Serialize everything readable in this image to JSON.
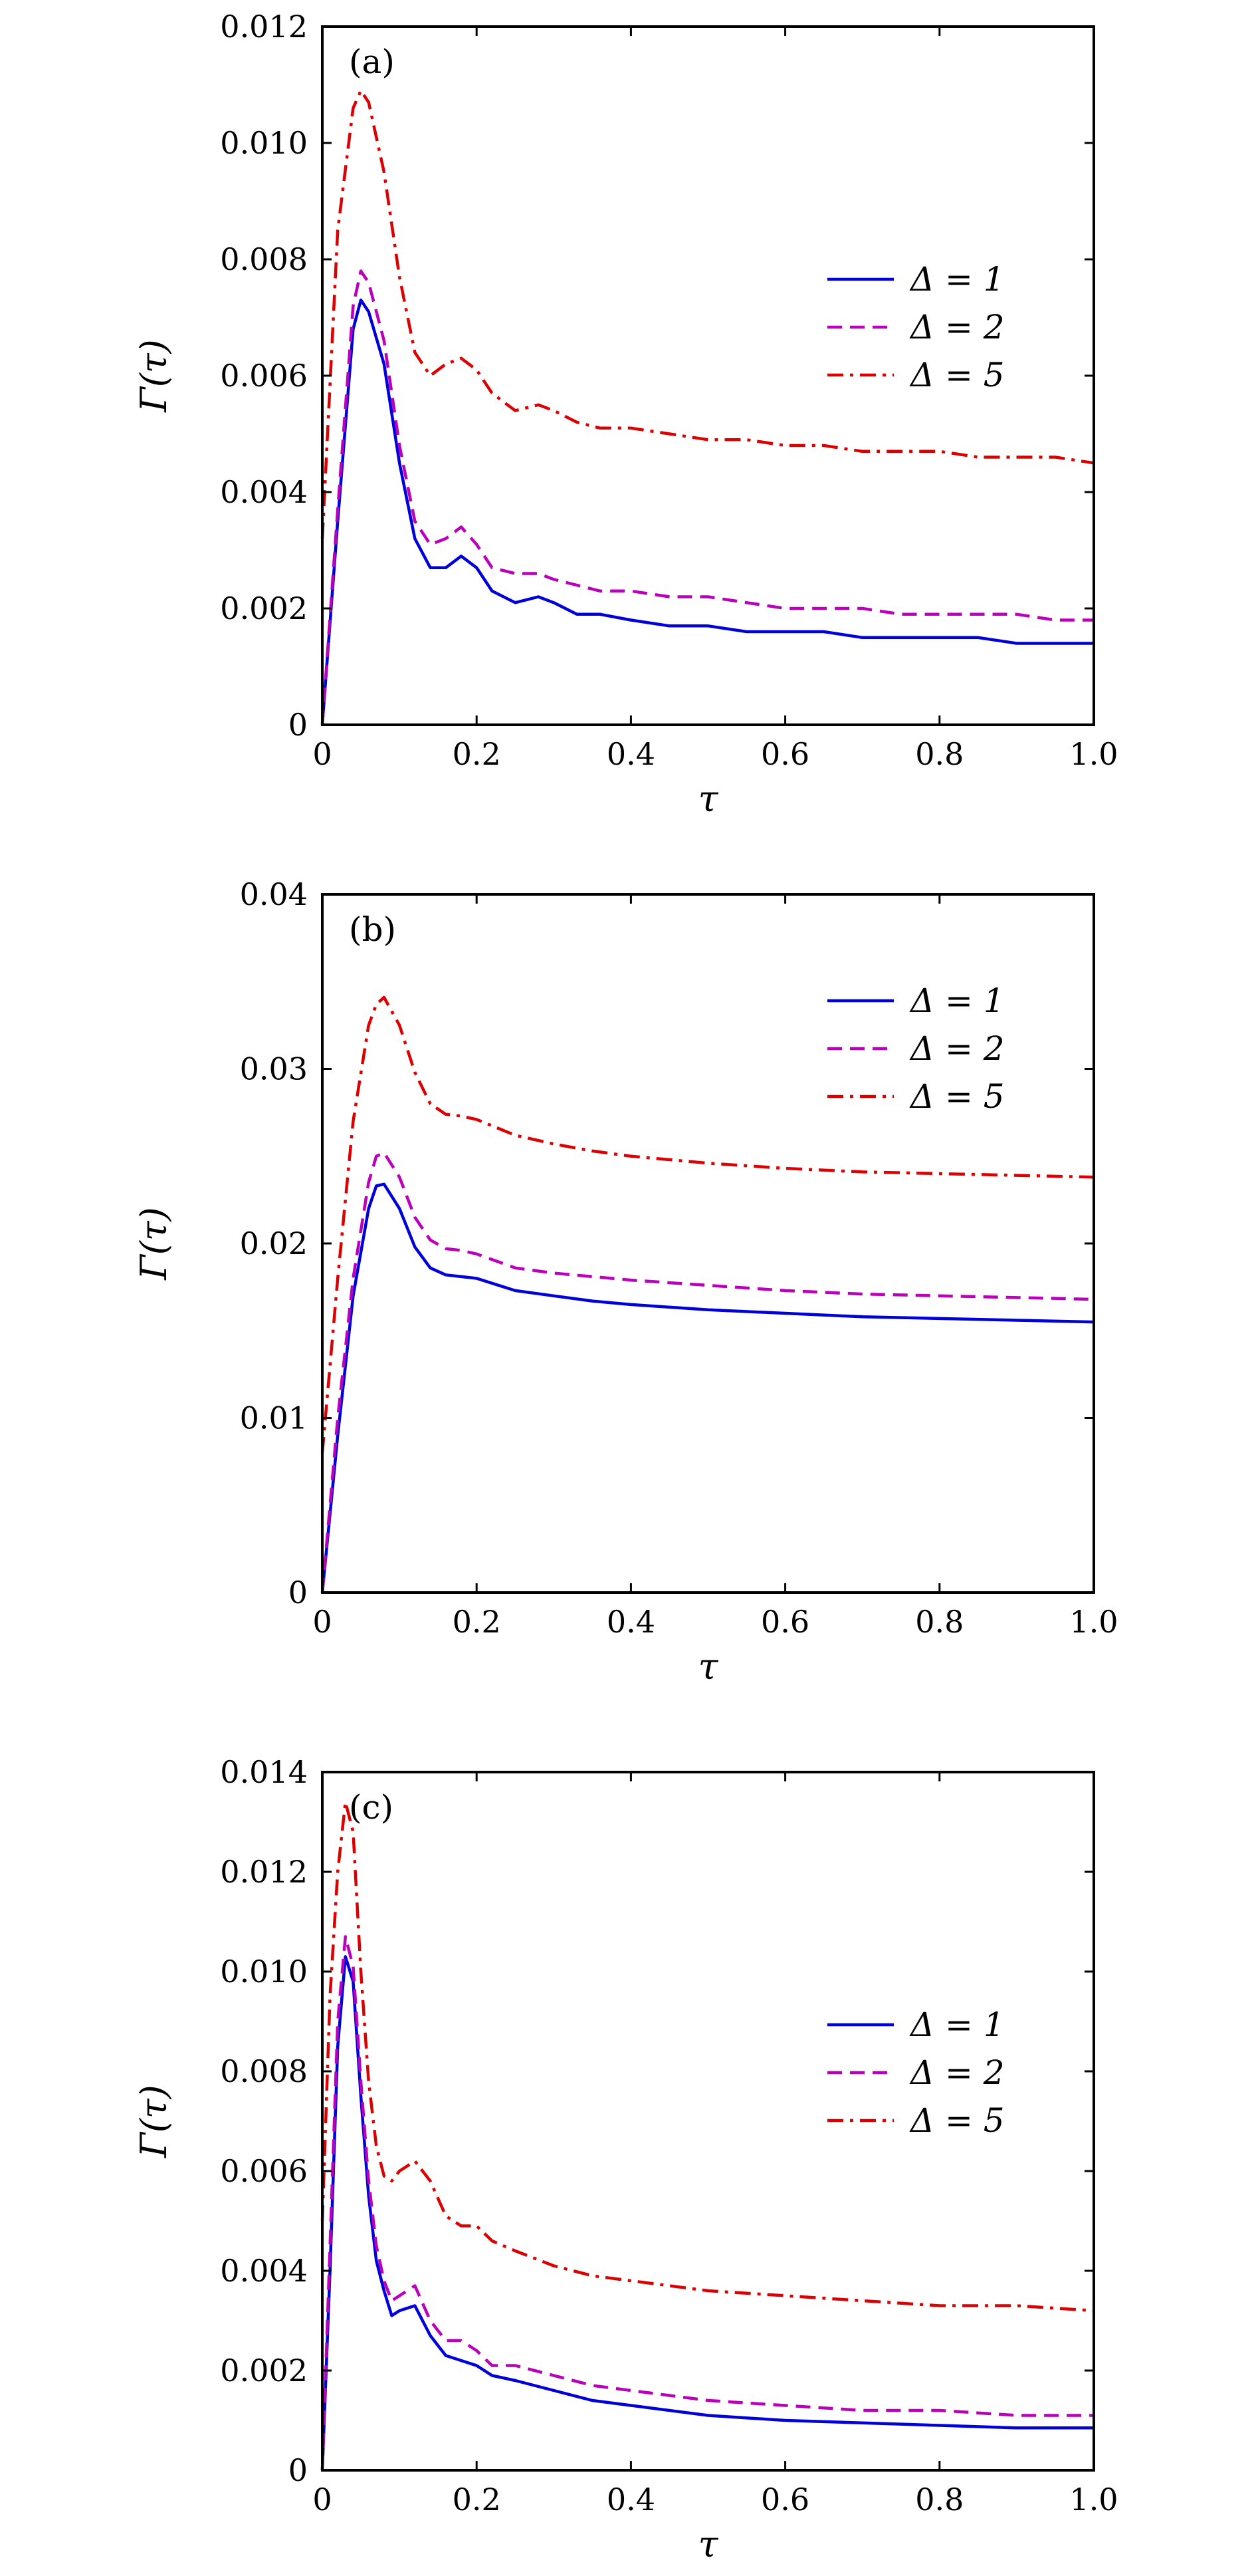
{
  "colors": {
    "solid": "#0000dd",
    "dashed": "#bb00bb",
    "dashdot": "#dd0000"
  },
  "chart_data": [
    {
      "type": "line",
      "panel_label": "(a)",
      "xlabel": "τ",
      "ylabel": "Γ(τ)",
      "xlim": [
        0,
        1.0
      ],
      "ylim": [
        0,
        0.012
      ],
      "xticks": [
        0,
        0.2,
        0.4,
        0.6,
        0.8,
        1.0
      ],
      "xtick_labels": [
        "0",
        "0.2",
        "0.4",
        "0.6",
        "0.8",
        "1.0"
      ],
      "yticks": [
        0,
        0.002,
        0.004,
        0.006,
        0.008,
        0.01,
        0.012
      ],
      "ytick_labels": [
        "0",
        "0.002",
        "0.004",
        "0.006",
        "0.008",
        "0.010",
        "0.012"
      ],
      "legend_position": "right",
      "series": [
        {
          "name": "Δ = 1",
          "style": "solid",
          "x": [
            0,
            0.02,
            0.04,
            0.05,
            0.06,
            0.08,
            0.1,
            0.12,
            0.14,
            0.16,
            0.18,
            0.2,
            0.22,
            0.25,
            0.28,
            0.3,
            0.33,
            0.36,
            0.4,
            0.45,
            0.5,
            0.55,
            0.6,
            0.65,
            0.7,
            0.75,
            0.8,
            0.85,
            0.9,
            0.95,
            1.0
          ],
          "y": [
            0,
            0.0035,
            0.0068,
            0.0073,
            0.0071,
            0.0062,
            0.0045,
            0.0032,
            0.0027,
            0.0027,
            0.0029,
            0.0027,
            0.0023,
            0.0021,
            0.0022,
            0.0021,
            0.0019,
            0.0019,
            0.0018,
            0.0017,
            0.0017,
            0.0016,
            0.0016,
            0.0016,
            0.0015,
            0.0015,
            0.0015,
            0.0015,
            0.0014,
            0.0014,
            0.0014
          ]
        },
        {
          "name": "Δ = 2",
          "style": "dashed",
          "x": [
            0,
            0.02,
            0.04,
            0.05,
            0.06,
            0.08,
            0.1,
            0.12,
            0.14,
            0.16,
            0.18,
            0.2,
            0.22,
            0.25,
            0.28,
            0.3,
            0.33,
            0.36,
            0.4,
            0.45,
            0.5,
            0.55,
            0.6,
            0.65,
            0.7,
            0.75,
            0.8,
            0.85,
            0.9,
            0.95,
            1.0
          ],
          "y": [
            0,
            0.0037,
            0.0072,
            0.0078,
            0.0076,
            0.0066,
            0.0048,
            0.0035,
            0.0031,
            0.0032,
            0.0034,
            0.0031,
            0.0027,
            0.0026,
            0.0026,
            0.0025,
            0.0024,
            0.0023,
            0.0023,
            0.0022,
            0.0022,
            0.0021,
            0.002,
            0.002,
            0.002,
            0.0019,
            0.0019,
            0.0019,
            0.0019,
            0.0018,
            0.0018
          ]
        },
        {
          "name": "Δ = 5",
          "style": "dashdot",
          "x": [
            0,
            0.02,
            0.04,
            0.05,
            0.06,
            0.08,
            0.1,
            0.12,
            0.14,
            0.16,
            0.18,
            0.2,
            0.22,
            0.25,
            0.28,
            0.3,
            0.33,
            0.36,
            0.4,
            0.45,
            0.5,
            0.55,
            0.6,
            0.65,
            0.7,
            0.75,
            0.8,
            0.85,
            0.9,
            0.95,
            1.0
          ],
          "y": [
            0.0032,
            0.0085,
            0.0106,
            0.0109,
            0.0107,
            0.0095,
            0.0077,
            0.0064,
            0.006,
            0.0062,
            0.0063,
            0.0061,
            0.0057,
            0.0054,
            0.0055,
            0.0054,
            0.0052,
            0.0051,
            0.0051,
            0.005,
            0.0049,
            0.0049,
            0.0048,
            0.0048,
            0.0047,
            0.0047,
            0.0047,
            0.0046,
            0.0046,
            0.0046,
            0.0045
          ]
        }
      ]
    },
    {
      "type": "line",
      "panel_label": "(b)",
      "xlabel": "τ",
      "ylabel": "Γ(τ)",
      "xlim": [
        0,
        1.0
      ],
      "ylim": [
        0,
        0.04
      ],
      "xticks": [
        0,
        0.2,
        0.4,
        0.6,
        0.8,
        1.0
      ],
      "xtick_labels": [
        "0",
        "0.2",
        "0.4",
        "0.6",
        "0.8",
        "1.0"
      ],
      "yticks": [
        0,
        0.01,
        0.02,
        0.03,
        0.04
      ],
      "ytick_labels": [
        "0",
        "0.01",
        "0.02",
        "0.03",
        "0.04"
      ],
      "legend_position": "top-right",
      "series": [
        {
          "name": "Δ = 1",
          "style": "solid",
          "x": [
            0,
            0.02,
            0.04,
            0.06,
            0.07,
            0.08,
            0.1,
            0.12,
            0.14,
            0.16,
            0.18,
            0.2,
            0.25,
            0.3,
            0.35,
            0.4,
            0.5,
            0.6,
            0.7,
            0.8,
            0.9,
            1.0
          ],
          "y": [
            0,
            0.009,
            0.017,
            0.022,
            0.0233,
            0.0234,
            0.022,
            0.0198,
            0.0186,
            0.0182,
            0.0181,
            0.018,
            0.0173,
            0.017,
            0.0167,
            0.0165,
            0.0162,
            0.016,
            0.0158,
            0.0157,
            0.0156,
            0.0155
          ]
        },
        {
          "name": "Δ = 2",
          "style": "dashed",
          "x": [
            0,
            0.02,
            0.04,
            0.06,
            0.07,
            0.08,
            0.1,
            0.12,
            0.14,
            0.16,
            0.18,
            0.2,
            0.25,
            0.3,
            0.35,
            0.4,
            0.5,
            0.6,
            0.7,
            0.8,
            0.9,
            1.0
          ],
          "y": [
            0,
            0.01,
            0.018,
            0.0235,
            0.025,
            0.0252,
            0.0238,
            0.0215,
            0.0202,
            0.0197,
            0.0196,
            0.0194,
            0.0186,
            0.0183,
            0.0181,
            0.0179,
            0.0176,
            0.0173,
            0.0171,
            0.017,
            0.0169,
            0.0168
          ]
        },
        {
          "name": "Δ = 5",
          "style": "dashdot",
          "x": [
            0,
            0.02,
            0.04,
            0.06,
            0.07,
            0.08,
            0.1,
            0.12,
            0.14,
            0.16,
            0.18,
            0.2,
            0.25,
            0.3,
            0.35,
            0.4,
            0.5,
            0.6,
            0.7,
            0.8,
            0.9,
            1.0
          ],
          "y": [
            0.008,
            0.018,
            0.027,
            0.0325,
            0.0337,
            0.0341,
            0.0325,
            0.0298,
            0.028,
            0.0274,
            0.0273,
            0.0271,
            0.0262,
            0.0257,
            0.0253,
            0.025,
            0.0246,
            0.0243,
            0.0241,
            0.024,
            0.0239,
            0.0238
          ]
        }
      ]
    },
    {
      "type": "line",
      "panel_label": "(c)",
      "xlabel": "τ",
      "ylabel": "Γ(τ)",
      "xlim": [
        0,
        1.0
      ],
      "ylim": [
        0,
        0.014
      ],
      "xticks": [
        0,
        0.2,
        0.4,
        0.6,
        0.8,
        1.0
      ],
      "xtick_labels": [
        "0",
        "0.2",
        "0.4",
        "0.6",
        "0.8",
        "1.0"
      ],
      "yticks": [
        0,
        0.002,
        0.004,
        0.006,
        0.008,
        0.01,
        0.012,
        0.014
      ],
      "ytick_labels": [
        "0",
        "0.002",
        "0.004",
        "0.006",
        "0.008",
        "0.010",
        "0.012",
        "0.014"
      ],
      "legend_position": "right",
      "series": [
        {
          "name": "Δ = 1",
          "style": "solid",
          "x": [
            0,
            0.01,
            0.02,
            0.03,
            0.04,
            0.05,
            0.06,
            0.07,
            0.08,
            0.09,
            0.1,
            0.12,
            0.14,
            0.16,
            0.18,
            0.2,
            0.22,
            0.25,
            0.3,
            0.35,
            0.4,
            0.5,
            0.6,
            0.7,
            0.8,
            0.9,
            1.0
          ],
          "y": [
            0,
            0.004,
            0.0085,
            0.0103,
            0.0098,
            0.0075,
            0.0055,
            0.0042,
            0.0036,
            0.0031,
            0.0032,
            0.0033,
            0.0027,
            0.0023,
            0.0022,
            0.0021,
            0.0019,
            0.0018,
            0.0016,
            0.0014,
            0.0013,
            0.0011,
            0.001,
            0.00095,
            0.0009,
            0.00085,
            0.00085
          ]
        },
        {
          "name": "Δ = 2",
          "style": "dashed",
          "x": [
            0,
            0.01,
            0.02,
            0.03,
            0.04,
            0.05,
            0.06,
            0.07,
            0.08,
            0.09,
            0.1,
            0.12,
            0.14,
            0.16,
            0.18,
            0.2,
            0.22,
            0.25,
            0.3,
            0.35,
            0.4,
            0.5,
            0.6,
            0.7,
            0.8,
            0.9,
            1.0
          ],
          "y": [
            0,
            0.0045,
            0.009,
            0.0107,
            0.0101,
            0.0078,
            0.0058,
            0.0045,
            0.0038,
            0.0034,
            0.0035,
            0.0037,
            0.003,
            0.0026,
            0.0026,
            0.0024,
            0.0021,
            0.0021,
            0.0019,
            0.0017,
            0.0016,
            0.0014,
            0.0013,
            0.0012,
            0.0012,
            0.0011,
            0.0011
          ]
        },
        {
          "name": "Δ = 5",
          "style": "dashdot",
          "x": [
            0,
            0.01,
            0.02,
            0.03,
            0.04,
            0.05,
            0.06,
            0.07,
            0.08,
            0.09,
            0.1,
            0.12,
            0.14,
            0.16,
            0.18,
            0.2,
            0.22,
            0.25,
            0.3,
            0.35,
            0.4,
            0.5,
            0.6,
            0.7,
            0.8,
            0.9,
            1.0
          ],
          "y": [
            0.005,
            0.0095,
            0.012,
            0.0134,
            0.0128,
            0.01,
            0.0078,
            0.0065,
            0.0059,
            0.0058,
            0.006,
            0.0062,
            0.0058,
            0.0051,
            0.0049,
            0.0049,
            0.0046,
            0.0044,
            0.0041,
            0.0039,
            0.0038,
            0.0036,
            0.0035,
            0.0034,
            0.0033,
            0.0033,
            0.0032
          ]
        }
      ]
    }
  ]
}
